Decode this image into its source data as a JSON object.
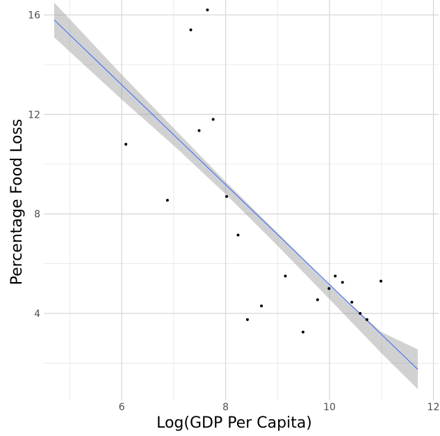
{
  "chart_data": {
    "type": "scatter",
    "title": "",
    "xlabel": "Log(GDP Per Capita)",
    "ylabel": "Percentage Food Loss",
    "xlim": [
      4.5,
      12.1
    ],
    "ylim": [
      0.5,
      16.6
    ],
    "x_ticks": [
      6,
      8,
      10,
      12
    ],
    "y_ticks": [
      4,
      8,
      12,
      16
    ],
    "x_minor": [
      5,
      7,
      9,
      11
    ],
    "y_minor": [
      2,
      6,
      10,
      14
    ],
    "grid": true,
    "points": [
      {
        "x": 6.08,
        "y": 10.8
      },
      {
        "x": 6.88,
        "y": 8.55
      },
      {
        "x": 7.33,
        "y": 15.4
      },
      {
        "x": 7.49,
        "y": 11.35
      },
      {
        "x": 7.65,
        "y": 16.2
      },
      {
        "x": 7.76,
        "y": 11.8
      },
      {
        "x": 8.02,
        "y": 8.7
      },
      {
        "x": 8.24,
        "y": 7.15
      },
      {
        "x": 8.42,
        "y": 3.75
      },
      {
        "x": 8.69,
        "y": 4.3
      },
      {
        "x": 9.15,
        "y": 5.5
      },
      {
        "x": 9.49,
        "y": 3.25
      },
      {
        "x": 9.77,
        "y": 4.55
      },
      {
        "x": 9.99,
        "y": 5.0
      },
      {
        "x": 10.11,
        "y": 5.5
      },
      {
        "x": 10.25,
        "y": 5.25
      },
      {
        "x": 10.43,
        "y": 4.45
      },
      {
        "x": 10.59,
        "y": 4.0
      },
      {
        "x": 10.72,
        "y": 3.75
      },
      {
        "x": 10.99,
        "y": 5.3
      }
    ],
    "trend_line": {
      "method": "linear fit",
      "x": [
        4.7,
        11.7
      ],
      "y": [
        15.8,
        1.75
      ]
    },
    "confidence_band": {
      "x": [
        4.7,
        6.0,
        7.0,
        8.0,
        9.0,
        10.0,
        11.0,
        11.7
      ],
      "lower": [
        15.1,
        12.6,
        10.75,
        8.8,
        6.72,
        4.57,
        2.4,
        0.95
      ],
      "upper": [
        16.5,
        13.6,
        11.45,
        9.3,
        7.24,
        5.15,
        3.25,
        2.55
      ]
    },
    "colors": {
      "points": "#000000",
      "fit_line": "#3366FF",
      "confidence_band": "#999999",
      "grid": "#d4d4d4",
      "background": "#ffffff"
    }
  }
}
